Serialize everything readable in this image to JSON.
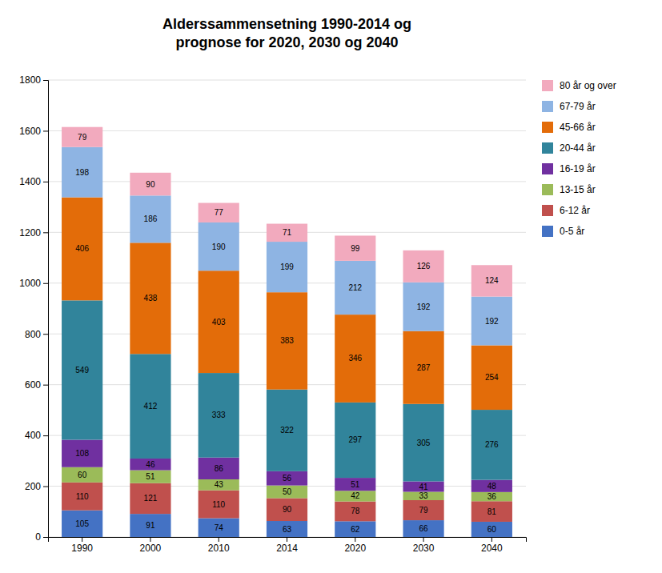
{
  "chart_data": {
    "type": "bar",
    "stacked": true,
    "title": "Alderssammensetning 1990-2014 og\nprognose for 2020, 2030 og 2040",
    "categories": [
      "1990",
      "2000",
      "2010",
      "2014",
      "2020",
      "2030",
      "2040"
    ],
    "series": [
      {
        "name": "0-5 år",
        "color": "#4472C4",
        "values": [
          105,
          91,
          74,
          63,
          62,
          66,
          60
        ]
      },
      {
        "name": "6-12 år",
        "color": "#C0504D",
        "values": [
          110,
          121,
          110,
          90,
          78,
          79,
          81
        ]
      },
      {
        "name": "13-15 år",
        "color": "#9BBB59",
        "values": [
          60,
          51,
          43,
          50,
          42,
          33,
          36
        ]
      },
      {
        "name": "16-19 år",
        "color": "#7030A0",
        "values": [
          108,
          46,
          86,
          56,
          51,
          41,
          48
        ]
      },
      {
        "name": "20-44 år",
        "color": "#31849B",
        "values": [
          549,
          412,
          333,
          322,
          297,
          305,
          276
        ]
      },
      {
        "name": "45-66 år",
        "color": "#E36C09",
        "values": [
          406,
          438,
          403,
          383,
          346,
          287,
          254
        ]
      },
      {
        "name": "67-79 år",
        "color": "#8EB4E3",
        "values": [
          198,
          186,
          190,
          199,
          212,
          192,
          192
        ]
      },
      {
        "name": "80 år og over",
        "color": "#F2AABE",
        "values": [
          79,
          90,
          77,
          71,
          99,
          126,
          124
        ]
      }
    ],
    "ylim": [
      0,
      1800
    ],
    "yticks": [
      0,
      200,
      400,
      600,
      800,
      1000,
      1200,
      1400,
      1600,
      1800
    ],
    "grid": true,
    "data_labels": true,
    "legend": "right"
  }
}
